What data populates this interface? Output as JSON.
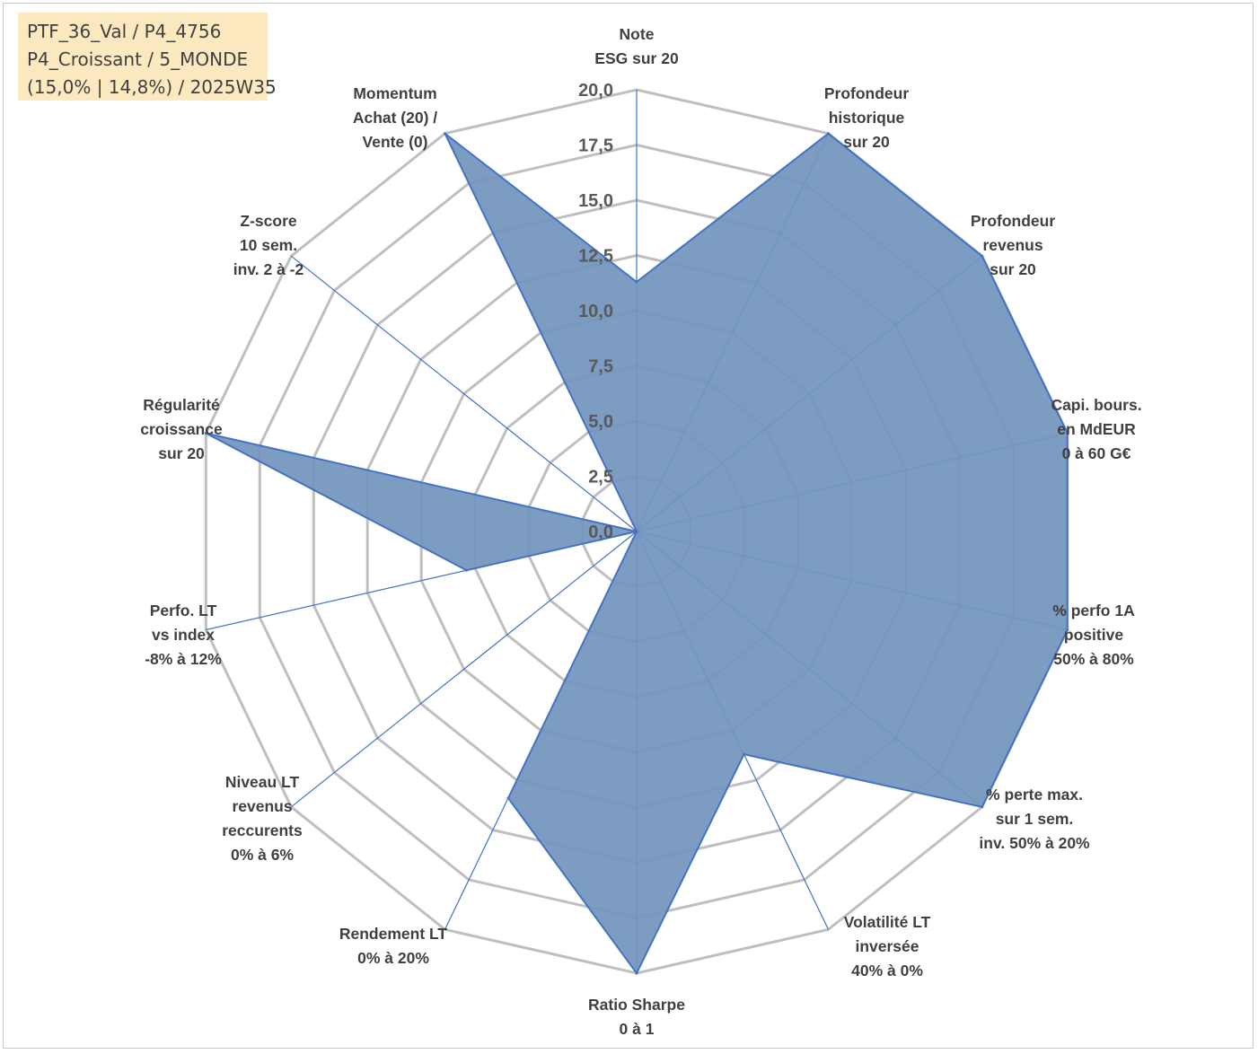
{
  "info_box": {
    "lines": [
      "PTF_36_Val / P4_4756",
      "P4_Croissant / 5_MONDE",
      "(15,0% | 14,8%) / 2025W35"
    ]
  },
  "colors": {
    "fill": "#7394bd",
    "stroke": "#4472c4",
    "grid": "#bfbfbf",
    "tick_text": "#595959",
    "label_text": "#404040",
    "info_bg": "#fde9c0"
  },
  "chart_data": {
    "type": "radar",
    "title": "",
    "range": [
      0,
      20
    ],
    "tick_step": 2.5,
    "tick_labels": [
      "0,0",
      "2,5",
      "5,0",
      "7,5",
      "10,0",
      "12,5",
      "15,0",
      "17,5",
      "20,0"
    ],
    "axes": [
      {
        "label": [
          "Note",
          "ESG sur 20"
        ],
        "value": 11.3
      },
      {
        "label": [
          "Profondeur",
          "historique",
          "sur 20"
        ],
        "value": 20
      },
      {
        "label": [
          "Profondeur",
          "revenus",
          "sur 20"
        ],
        "value": 20
      },
      {
        "label": [
          "Capi. bours.",
          "en MdEUR",
          "0 à 60 G€"
        ],
        "value": 20
      },
      {
        "label": [
          "% perfo 1A",
          "positive",
          "50% à 80%"
        ],
        "value": 20
      },
      {
        "label": [
          "% perte max.",
          "sur 1 sem.",
          "inv. 50% à 20%"
        ],
        "value": 20
      },
      {
        "label": [
          "Volatilité LT",
          "inversée",
          "40% à 0%"
        ],
        "value": 11.2
      },
      {
        "label": [
          "Ratio Sharpe",
          "0 à 1"
        ],
        "value": 20
      },
      {
        "label": [
          "Rendement LT",
          "0% à 20%"
        ],
        "value": 13.4
      },
      {
        "label": [
          "Niveau LT",
          "revenus",
          "reccurents",
          "0% à 6%"
        ],
        "value": 0
      },
      {
        "label": [
          "Perfo. LT",
          "vs index",
          "-8% à 12%"
        ],
        "value": 7.9
      },
      {
        "label": [
          "Régularité",
          "croissance",
          "sur 20"
        ],
        "value": 20
      },
      {
        "label": [
          "Z-score",
          "10 sem.",
          "inv. 2 à -2"
        ],
        "value": 0
      },
      {
        "label": [
          "Momentum",
          "Achat (20) /",
          "Vente (0)"
        ],
        "value": 20
      }
    ]
  }
}
